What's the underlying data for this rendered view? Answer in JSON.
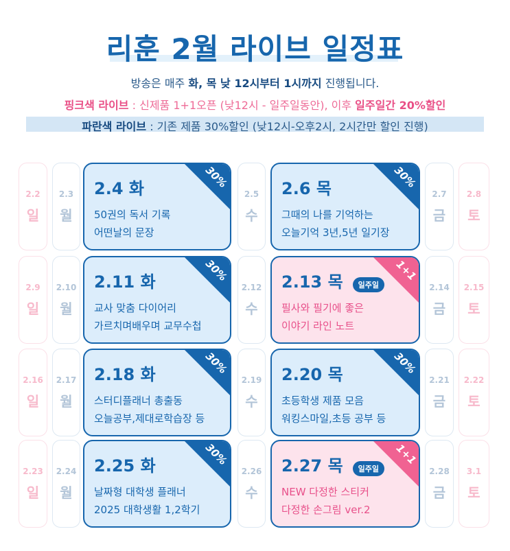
{
  "title": "리훈 2월 라이브 일정표",
  "info": {
    "line1_pre": "방송은 매주 ",
    "line1_bold": "화, 목 낮 12시부터 1시까지",
    "line1_post": " 진행됩니다.",
    "line2_label": "핑크색 라이브",
    "line2_text": " : 신제품 1+1오픈 (낮12시 - 일주일동안), 이후 ",
    "line2_bold": "일주일간 20%할인",
    "line3_label": "파란색 라이브",
    "line3_text": " : 기존 제품 30%할인 (낮12시-오후2시, 2시간만 할인 진행)"
  },
  "colors": {
    "blue": "#1766ad",
    "pink": "#f06292",
    "blue_card": "#dcedfb",
    "pink_card": "#fde3ec"
  },
  "weeks": [
    {
      "sun": {
        "date": "2.2",
        "day": "일"
      },
      "mon": {
        "date": "2.3",
        "day": "월"
      },
      "tue": {
        "date": "2.4 화",
        "corner": "30%",
        "type": "blue",
        "lines": [
          "50권의 독서 기록",
          "어떤날의 문장"
        ]
      },
      "wed": {
        "date": "2.5",
        "day": "수"
      },
      "thu": {
        "date": "2.6 목",
        "corner": "30%",
        "type": "blue",
        "lines": [
          "그때의 나를 기억하는",
          "오늘기억 3년,5년 일기장"
        ]
      },
      "fri": {
        "date": "2.7",
        "day": "금"
      },
      "sat": {
        "date": "2.8",
        "day": "토"
      }
    },
    {
      "sun": {
        "date": "2.9",
        "day": "일"
      },
      "mon": {
        "date": "2.10",
        "day": "월"
      },
      "tue": {
        "date": "2.11 화",
        "corner": "30%",
        "type": "blue",
        "lines": [
          "교사 맞춤 다이어리",
          "가르치며배우며 교무수첩"
        ]
      },
      "wed": {
        "date": "2.12",
        "day": "수"
      },
      "thu": {
        "date": "2.13 목",
        "corner": "1+1",
        "badge": "일주일",
        "type": "pink",
        "lines": [
          "필사와 필기에 좋은",
          "이야기 라인 노트"
        ]
      },
      "fri": {
        "date": "2.14",
        "day": "금"
      },
      "sat": {
        "date": "2.15",
        "day": "토"
      }
    },
    {
      "sun": {
        "date": "2.16",
        "day": "일"
      },
      "mon": {
        "date": "2.17",
        "day": "월"
      },
      "tue": {
        "date": "2.18 화",
        "corner": "30%",
        "type": "blue",
        "lines": [
          "스터디플래너 총출동",
          "오늘공부,제대로학습장 등"
        ]
      },
      "wed": {
        "date": "2.19",
        "day": "수"
      },
      "thu": {
        "date": "2.20 목",
        "corner": "30%",
        "type": "blue",
        "lines": [
          "초등학생 제품 모음",
          "워킹스마일,초등 공부 등"
        ]
      },
      "fri": {
        "date": "2.21",
        "day": "금"
      },
      "sat": {
        "date": "2.22",
        "day": "토"
      }
    },
    {
      "sun": {
        "date": "2.23",
        "day": "일"
      },
      "mon": {
        "date": "2.24",
        "day": "월"
      },
      "tue": {
        "date": "2.25 화",
        "corner": "30%",
        "type": "blue",
        "lines": [
          "날짜형 대학생 플래너",
          "2025 대학생활 1,2학기"
        ]
      },
      "wed": {
        "date": "2.26",
        "day": "수"
      },
      "thu": {
        "date": "2.27 목",
        "corner": "1+1",
        "badge": "일주일",
        "type": "pink",
        "lines": [
          "NEW 다정한 스티커",
          "다정한 손그림 ver.2"
        ]
      },
      "fri": {
        "date": "2.28",
        "day": "금"
      },
      "sat": {
        "date": "3.1",
        "day": "토"
      }
    }
  ]
}
